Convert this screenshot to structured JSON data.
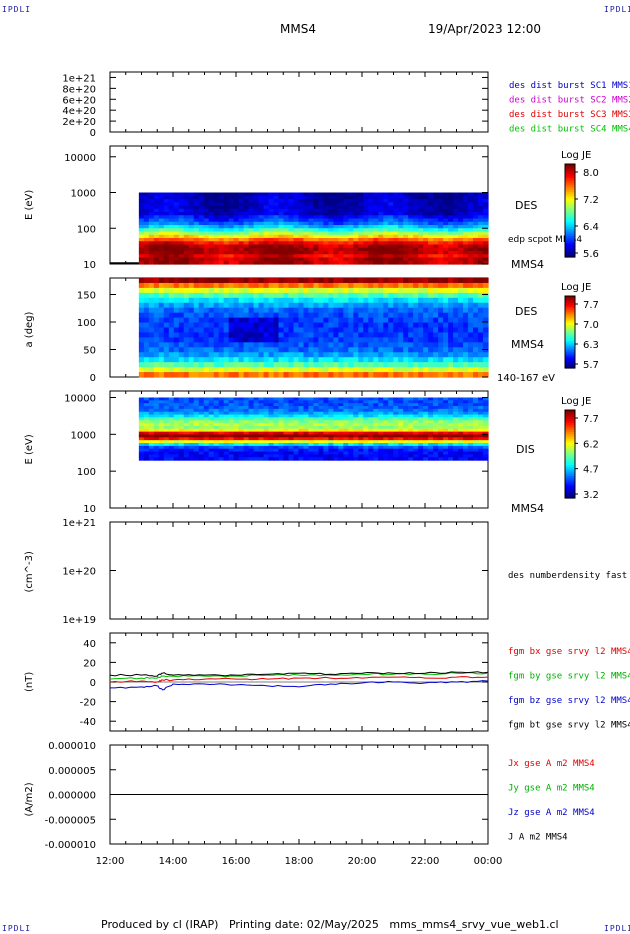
{
  "corner_tag": "IPDLI",
  "header": {
    "spacecraft": "MMS4",
    "datetime": "19/Apr/2023 12:00"
  },
  "footer": "Produced by cl (IRAP)   Printing date: 02/May/2025   mms_mms4_srvy_vue_web1.cl",
  "colors": {
    "red": "#e00000",
    "green": "#00c000",
    "blue": "#0000cc",
    "magenta": "#d000d0",
    "black": "#000000"
  },
  "chart_data": [
    {
      "type": "line",
      "panel": "distribution flags",
      "ylabel": "",
      "ytick_labels": [
        "1e+21",
        "8e+20",
        "6e+20",
        "4e+20",
        "2e+20",
        "0"
      ],
      "ylim": [
        0,
        1.1e+21
      ],
      "series": [
        {
          "name": "des dist burst SC1 MMS1",
          "color": "#0000cc",
          "values": []
        },
        {
          "name": "des dist burst SC2 MMS2",
          "color": "#d000d0",
          "values": []
        },
        {
          "name": "des dist burst SC3 MMS3",
          "color": "#e00000",
          "values": []
        },
        {
          "name": "des dist burst SC4 MMS4",
          "color": "#00c000",
          "values": []
        }
      ]
    },
    {
      "type": "heatmap",
      "panel": "DES energy spectrogram",
      "ylabel": "E (eV)",
      "yscale": "log",
      "ylim": [
        10,
        20000
      ],
      "ytick_labels": [
        "10000",
        "1000",
        "100",
        "10"
      ],
      "right_labels": [
        "DES",
        "edp scpot MMS4",
        "MMS4"
      ],
      "colorbar": {
        "title": "Log JE",
        "ticks": [
          "8.0",
          "7.2",
          "6.4",
          "5.6"
        ]
      },
      "data_start": "12:55",
      "e_range_ev": [
        10,
        1000
      ]
    },
    {
      "type": "heatmap",
      "panel": "DES pitch angle",
      "ylabel": "a (deg)",
      "ylim": [
        0,
        180
      ],
      "ytick_labels": [
        "150",
        "100",
        "50",
        "0"
      ],
      "right_labels": [
        "DES",
        "MMS4",
        "140-167 eV"
      ],
      "colorbar": {
        "title": "Log JE",
        "ticks": [
          "7.7",
          "7.0",
          "6.3",
          "5.7"
        ]
      },
      "data_start": "12:55"
    },
    {
      "type": "heatmap",
      "panel": "DIS energy spectrogram",
      "ylabel": "E (eV)",
      "yscale": "log",
      "ylim": [
        10,
        15000
      ],
      "ytick_labels": [
        "10000",
        "1000",
        "100",
        "10"
      ],
      "right_labels": [
        "DIS",
        "MMS4"
      ],
      "colorbar": {
        "title": "Log JE",
        "ticks": [
          "7.7",
          "6.2",
          "4.7",
          "3.2"
        ]
      },
      "data_start": "12:55",
      "peak_ev": 1000
    },
    {
      "type": "line",
      "panel": "density",
      "ylabel": "(cm^-3)",
      "yscale": "log",
      "ytick_labels": [
        "1e+21",
        "1e+20",
        "1e+19"
      ],
      "series": [
        {
          "name": "des numberdensity fast M",
          "values": []
        }
      ]
    },
    {
      "type": "line",
      "panel": "magnetic field",
      "ylabel": "(nT)",
      "ylim": [
        -50,
        50
      ],
      "ytick_labels": [
        "40",
        "20",
        "0",
        "-20",
        "-40"
      ],
      "x": [
        "12:00",
        "13:00",
        "13:30",
        "13:40",
        "14:00",
        "15:00",
        "16:00",
        "17:00",
        "18:00",
        "19:00",
        "20:00",
        "21:00",
        "22:00",
        "23:00",
        "00:00"
      ],
      "series": [
        {
          "name": "fgm bx gse srvy l2 MMS4",
          "color": "#e00000",
          "values": [
            0,
            1,
            0,
            2,
            2,
            3,
            3,
            3,
            4,
            4,
            4,
            5,
            4,
            5,
            5
          ]
        },
        {
          "name": "fgm by gse srvy l2 MMS4",
          "color": "#00c000",
          "values": [
            3,
            4,
            4,
            6,
            6,
            6,
            6,
            7,
            7,
            7,
            8,
            8,
            8,
            9,
            9
          ]
        },
        {
          "name": "fgm bz gse srvy l2 MMS4",
          "color": "#0000cc",
          "values": [
            -6,
            -5,
            -4,
            -8,
            -2,
            -2,
            -3,
            -4,
            -5,
            -2,
            -1,
            0,
            -1,
            0,
            1
          ]
        },
        {
          "name": "fgm bt gse srvy l2 MMS4",
          "color": "#000000",
          "values": [
            7,
            7,
            6,
            9,
            7,
            7,
            7,
            8,
            9,
            8,
            9,
            9,
            9,
            10,
            10
          ]
        }
      ]
    },
    {
      "type": "line",
      "panel": "current density",
      "ylabel": "(A/m2)",
      "ylim": [
        -1e-05,
        1e-05
      ],
      "ytick_labels": [
        "0.000010",
        "0.000005",
        "0.000000",
        "-0.000005",
        "-0.000010"
      ],
      "x": [
        "12:00",
        "18:00",
        "00:00"
      ],
      "series": [
        {
          "name": "Jx gse A m2 MMS4",
          "color": "#e00000",
          "values": [
            0,
            0,
            0
          ]
        },
        {
          "name": "Jy gse A m2 MMS4",
          "color": "#00c000",
          "values": [
            0,
            0,
            0
          ]
        },
        {
          "name": "Jz gse A m2 MMS4",
          "color": "#0000cc",
          "values": [
            0,
            0,
            0
          ]
        },
        {
          "name": "J A m2 MMS4",
          "color": "#000000",
          "values": [
            0,
            0,
            0
          ]
        }
      ]
    }
  ],
  "xaxis": {
    "tick_labels": [
      "12:00",
      "14:00",
      "16:00",
      "18:00",
      "20:00",
      "22:00",
      "00:00"
    ]
  }
}
